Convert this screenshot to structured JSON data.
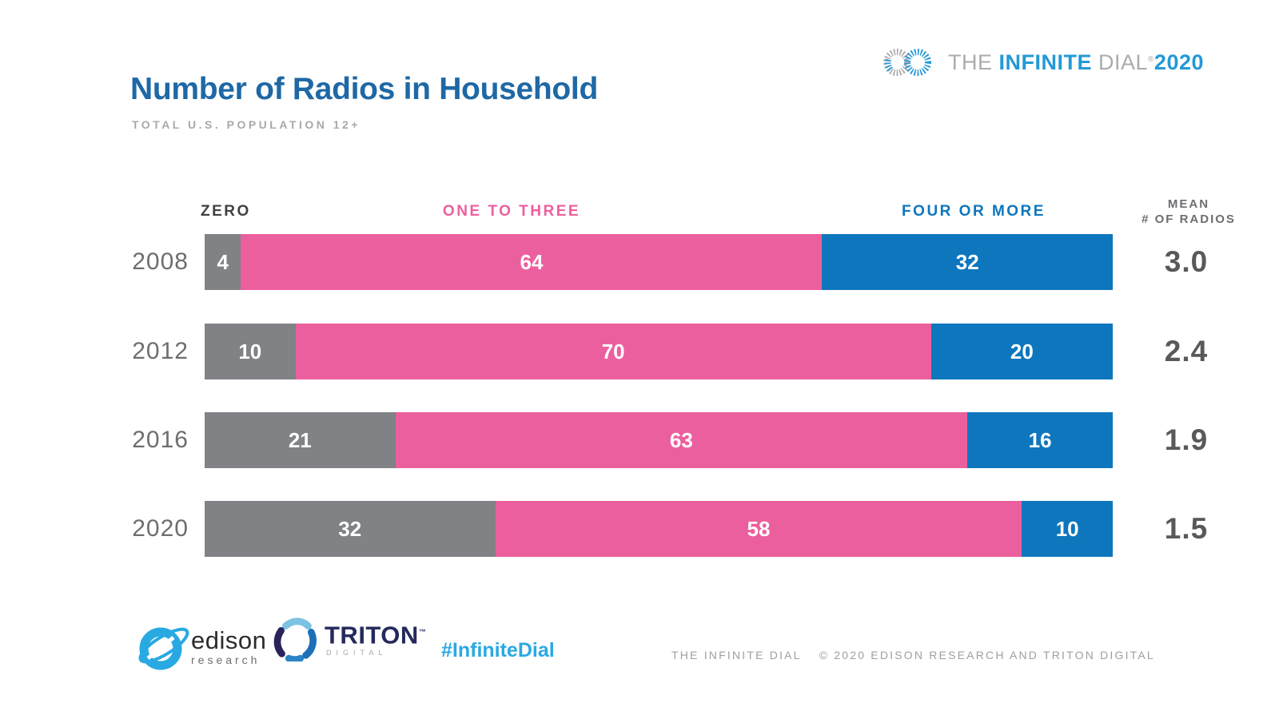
{
  "header": {
    "title": "Number of Radios in Household",
    "subtitle": "TOTAL U.S. POPULATION 12+",
    "brand": {
      "the": "THE ",
      "infinite": "INFINITE",
      "dial": " DIAL",
      "reg": "®",
      "year": "2020"
    }
  },
  "colors": {
    "title_blue": "#1e68a6",
    "brand_blue": "#2499d6",
    "brand_gray": "#a9abae",
    "zero_label": "#414042",
    "hashtag_blue": "#29a9e2"
  },
  "chart_data": {
    "type": "bar",
    "orientation": "horizontal",
    "stacked": true,
    "grid": false,
    "xlim": [
      0,
      100
    ],
    "categories": [
      "2008",
      "2012",
      "2016",
      "2020"
    ],
    "series": [
      {
        "name": "ZERO",
        "color": "#808285",
        "values": [
          4,
          10,
          21,
          32
        ]
      },
      {
        "name": "ONE TO THREE",
        "color": "#ec5f9e",
        "values": [
          64,
          70,
          63,
          58
        ]
      },
      {
        "name": "FOUR OR MORE",
        "color": "#0e76bd",
        "values": [
          32,
          20,
          16,
          10
        ]
      }
    ],
    "mean_column": {
      "label": [
        "MEAN",
        "# OF RADIOS"
      ],
      "values": [
        "3.0",
        "2.4",
        "1.9",
        "1.5"
      ]
    },
    "legend_position": "top",
    "value_labels": "inside-white"
  },
  "footer": {
    "edison": {
      "name": "edison",
      "sub": "research"
    },
    "triton": {
      "name": "TRITON",
      "tm": "™",
      "sub": "DIGITAL"
    },
    "hashtag": "#InfiniteDial",
    "copyright_left": "THE INFINITE DIAL",
    "copyright_right": "© 2020 EDISON RESEARCH AND TRITON DIGITAL"
  }
}
